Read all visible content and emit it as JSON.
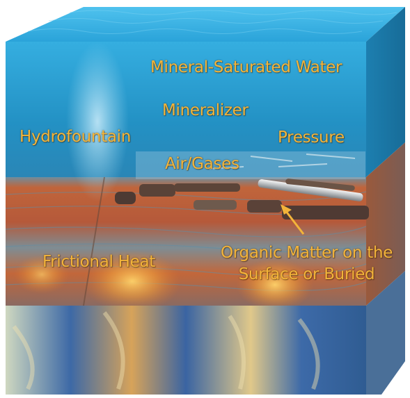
{
  "labels": {
    "water": "Mineral-Saturated Water",
    "mineralizer": "Mineralizer",
    "hydrofountain": "Hydrofountain",
    "pressure": "Pressure",
    "air_gases": "Air/Gases",
    "frictional_heat": "Frictional Heat",
    "organic_line1": "Organic Matter on the",
    "organic_line2": "Surface or Buried"
  },
  "colors": {
    "label": "#f3b43a",
    "water": "#2a9ccd",
    "sediment": "#c2643a",
    "deep_rock": "#3b6aa8"
  }
}
